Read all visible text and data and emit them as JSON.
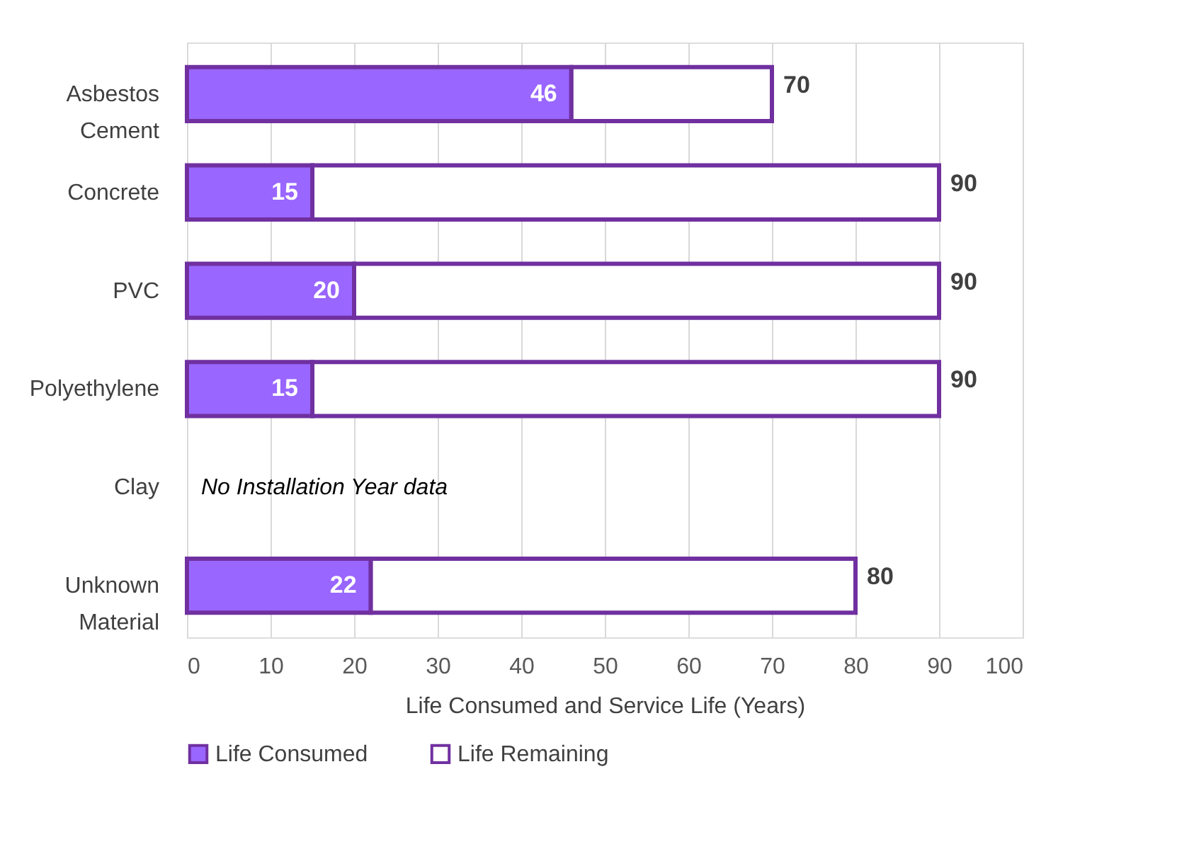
{
  "chart_data": {
    "type": "bar",
    "orientation": "horizontal",
    "stacked": true,
    "categories": [
      "Asbestos Cement",
      "Concrete",
      "PVC",
      "Polyethylene",
      "Clay",
      "Unknown Material"
    ],
    "series": [
      {
        "name": "Life Consumed",
        "color": "#9966ff",
        "values": [
          46,
          15,
          20,
          15,
          null,
          22
        ],
        "value_labels": [
          "46",
          "15",
          "20",
          "15",
          null,
          "22"
        ]
      },
      {
        "name": "Life Remaining",
        "color": "#ffffff",
        "values": [
          24,
          75,
          70,
          75,
          null,
          58
        ]
      }
    ],
    "totals": [
      "70",
      "90",
      "90",
      "90",
      null,
      "80"
    ],
    "xlabel": "Life Consumed and Service Life (Years)",
    "xlim": [
      0,
      100
    ],
    "xticks": [
      0,
      10,
      20,
      30,
      40,
      50,
      60,
      70,
      80,
      90,
      100
    ],
    "grid": "x",
    "legend": "bottom",
    "annotations": [
      "No Installation Year data"
    ]
  }
}
